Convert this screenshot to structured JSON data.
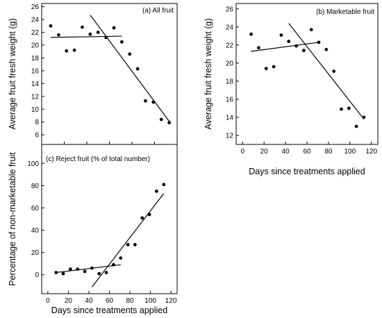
{
  "chart_data": [
    {
      "id": "a",
      "type": "scatter",
      "title": "(a) All fruit",
      "xlabel": "",
      "ylabel": "Average fruit fresh weight (g)",
      "xlim": [
        0,
        120
      ],
      "ylim": [
        4.5,
        26.5
      ],
      "xticks": [
        0,
        20,
        40,
        60,
        80,
        100,
        120
      ],
      "yticks": [
        6,
        8,
        10,
        12,
        14,
        16,
        18,
        20,
        22,
        24,
        26
      ],
      "show_xtick_labels": false,
      "grid": false,
      "series": [
        {
          "x": [
            8,
            15,
            22,
            29,
            36,
            43,
            50,
            57,
            64,
            71,
            78,
            85,
            92,
            99,
            106,
            113
          ],
          "y": [
            23.0,
            21.6,
            19.1,
            19.2,
            22.8,
            21.7,
            22.0,
            21.2,
            22.7,
            20.5,
            18.6,
            16.3,
            11.3,
            11.1,
            8.4,
            7.9
          ]
        }
      ],
      "fit_lines": [
        {
          "x": [
            8,
            71
          ],
          "y": [
            21.2,
            21.4
          ]
        },
        {
          "x": [
            43,
            113
          ],
          "y": [
            24.7,
            8.1
          ]
        }
      ]
    },
    {
      "id": "b",
      "type": "scatter",
      "title": "(b) Marketable fruit",
      "xlabel": "Days since treatments applied",
      "ylabel": "Average fruit fresh weight (g)",
      "xlim": [
        -6,
        126
      ],
      "ylim": [
        11,
        26.6
      ],
      "xticks": [
        0,
        20,
        40,
        60,
        80,
        100,
        120
      ],
      "yticks": [
        12,
        14,
        16,
        18,
        20,
        22,
        24,
        26
      ],
      "show_xtick_labels": true,
      "grid": false,
      "series": [
        {
          "x": [
            8,
            15,
            22,
            29,
            36,
            43,
            50,
            57,
            64,
            71,
            78,
            85,
            92,
            99,
            106,
            113
          ],
          "y": [
            23.2,
            21.7,
            19.4,
            19.6,
            23.1,
            22.4,
            21.9,
            21.4,
            23.7,
            22.3,
            21.5,
            19.1,
            14.9,
            15.0,
            13.0,
            14.0
          ]
        }
      ],
      "fit_lines": [
        {
          "x": [
            8,
            71
          ],
          "y": [
            21.3,
            22.3
          ]
        },
        {
          "x": [
            43,
            113
          ],
          "y": [
            24.4,
            13.8
          ]
        }
      ]
    },
    {
      "id": "c",
      "type": "scatter",
      "title": "(c) Reject fruit (% of total number)",
      "xlabel": "Days since treatments applied",
      "ylabel": "Percentage of non-marketable fruit",
      "xlim": [
        -6,
        126
      ],
      "ylim": [
        -17,
        117
      ],
      "xticks": [
        0,
        20,
        40,
        60,
        80,
        100,
        120
      ],
      "yticks": [
        0,
        20,
        40,
        60,
        80,
        100
      ],
      "show_xtick_labels": true,
      "grid": false,
      "series": [
        {
          "x": [
            8,
            15,
            22,
            29,
            36,
            43,
            50,
            57,
            64,
            71,
            78,
            85,
            92,
            99,
            106,
            113
          ],
          "y": [
            2,
            1,
            5,
            5,
            3,
            6,
            1,
            2,
            9,
            15,
            27,
            27,
            51,
            54,
            75,
            81
          ]
        }
      ],
      "fit_lines": [
        {
          "x": [
            8,
            71
          ],
          "y": [
            2,
            9
          ]
        },
        {
          "x": [
            43,
            113
          ],
          "y": [
            -11,
            73
          ]
        }
      ]
    }
  ]
}
